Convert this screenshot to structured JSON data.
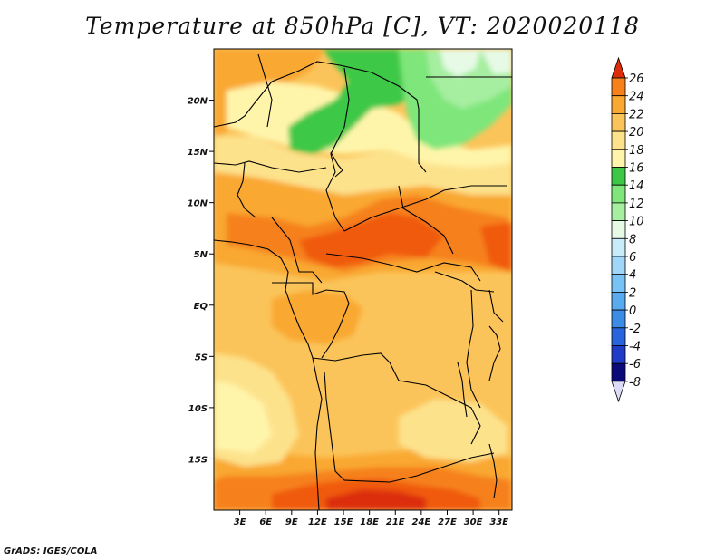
{
  "title": "Temperature at 850hPa [C], VT: 2020020118",
  "credit": "GrADS: IGES/COLA",
  "map": {
    "lat_labels": [
      "20N",
      "15N",
      "10N",
      "5N",
      "EQ",
      "5S",
      "10S",
      "15S"
    ],
    "lon_labels": [
      "3E",
      "6E",
      "9E",
      "12E",
      "15E",
      "18E",
      "21E",
      "24E",
      "27E",
      "30E",
      "33E"
    ],
    "lat_range": [
      -20,
      25
    ],
    "lon_range": [
      0,
      34.5
    ]
  },
  "legend": {
    "labels": [
      "26",
      "24",
      "22",
      "20",
      "18",
      "16",
      "14",
      "12",
      "10",
      "8",
      "6",
      "4",
      "2",
      "0",
      "-2",
      "-4",
      "-6",
      "-8"
    ],
    "colors": {
      "c_lt_m8": "#dcdcf8",
      "c_m8_m6": "#0a0a78",
      "c_m6_m4": "#1e3cc8",
      "c_m4_m2": "#2864dc",
      "c_m2_0": "#3c8ce6",
      "c_0_2": "#5aaaf0",
      "c_2_4": "#78c3f5",
      "c_4_6": "#a0d6f8",
      "c_6_8": "#c8ecfa",
      "c_8_10": "#e6fae6",
      "c_10_12": "#a6eea0",
      "c_12_14": "#7ee67a",
      "c_14_16": "#3cc846",
      "c_16_18": "#fff5aa",
      "c_18_20": "#fde28c",
      "c_20_22": "#fbc45a",
      "c_22_24": "#f9a832",
      "c_24_26": "#f6811a",
      "c_26_28": "#f05a0a",
      "c_gt_28": "#dc2d0a"
    }
  }
}
